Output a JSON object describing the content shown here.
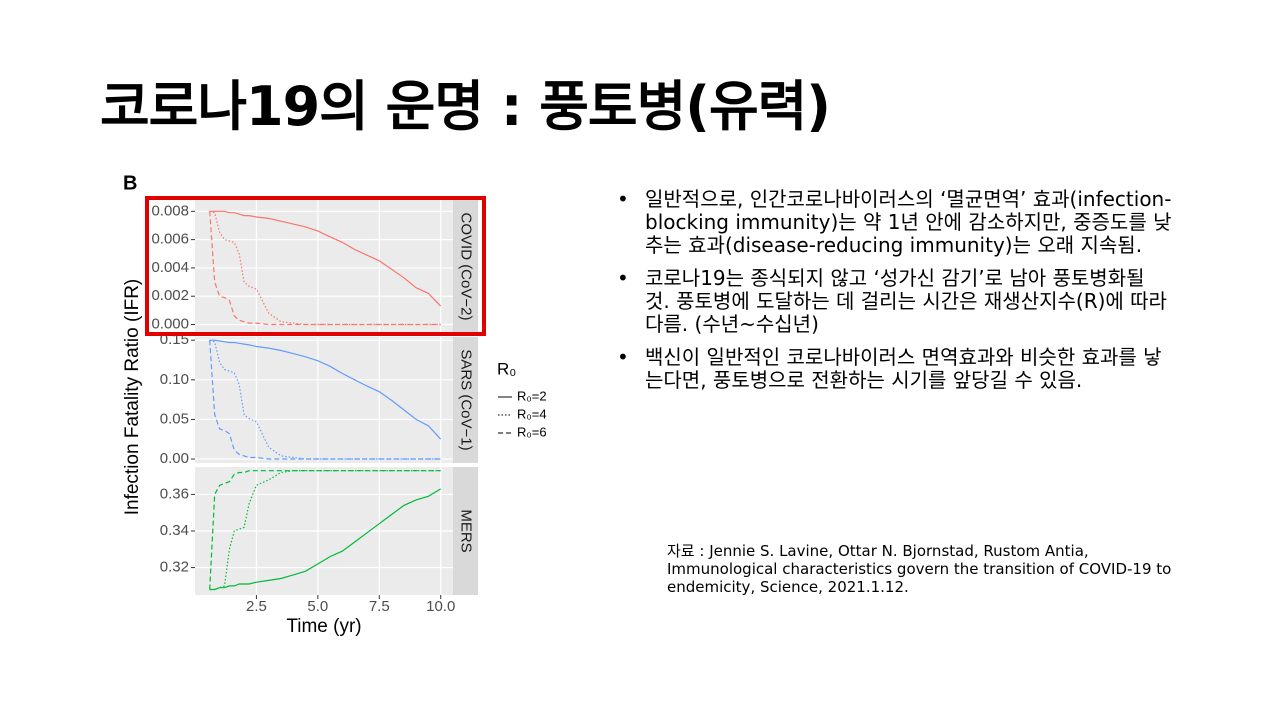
{
  "title": "코로나19의 운명 : 풍토병(유력)",
  "chart_data": {
    "type": "line",
    "panel_label": "B",
    "x_label": "Time (yr)",
    "y_label": "Infection Fatality Ratio (IFR)",
    "legend_title": "R₀",
    "legend": [
      "R₀=2",
      "R₀=4",
      "R₀=6"
    ],
    "dashes": [
      "solid",
      "dotted",
      "dashed"
    ],
    "grid": true,
    "xlim": [
      0,
      10.5
    ],
    "xticks": [
      2.5,
      {
        "value": 5,
        "label": "5.0"
      },
      7.5,
      {
        "value": 10,
        "label": "10.0"
      }
    ],
    "x": [
      0.6,
      0.8,
      1.0,
      1.2,
      1.4,
      1.6,
      1.8,
      2.0,
      2.2,
      2.5,
      3,
      3.5,
      4,
      4.5,
      5,
      5.5,
      6,
      6.5,
      7,
      7.5,
      8,
      8.5,
      9,
      9.5,
      10
    ],
    "facets": [
      {
        "label": "COVID (CoV−2)",
        "color": "#f8766d",
        "ylim": [
          -0.0006,
          0.0088
        ],
        "yticks": [
          {
            "value": 0,
            "label": "0.000"
          },
          0.002,
          0.004,
          0.006,
          0.008
        ],
        "series": [
          {
            "values": [
              0.008,
              0.008,
              0.008,
              0.008,
              0.0079,
              0.0079,
              0.0078,
              0.0077,
              0.0077,
              0.0076,
              0.0075,
              0.0073,
              0.0071,
              0.0069,
              0.0066,
              0.0062,
              0.0058,
              0.0053,
              0.0049,
              0.0045,
              0.0039,
              0.0033,
              0.0026,
              0.0022,
              0.0013
            ]
          },
          {
            "values": [
              0.008,
              0.0079,
              0.0065,
              0.006,
              0.0059,
              0.0058,
              0.005,
              0.003,
              0.0027,
              0.0025,
              0.0008,
              0.0002,
              0.0001,
              0,
              0,
              0,
              0,
              0,
              0,
              0,
              0,
              0,
              0,
              0,
              0
            ]
          },
          {
            "values": [
              0.008,
              0.003,
              0.002,
              0.0019,
              0.0017,
              0.0006,
              0.0003,
              0.0002,
              0.0001,
              0.0001,
              0,
              0,
              0,
              0,
              0,
              0,
              0,
              0,
              0,
              0,
              0,
              0,
              0,
              0,
              0
            ]
          }
        ]
      },
      {
        "label": "SARS (CoV−1)",
        "color": "#619cff",
        "ylim": [
          -0.005,
          0.154
        ],
        "yticks": [
          {
            "value": 0,
            "label": "0.00"
          },
          0.05,
          {
            "value": 0.1,
            "label": "0.10"
          },
          0.15
        ],
        "series": [
          {
            "values": [
              0.15,
              0.15,
              0.149,
              0.148,
              0.147,
              0.147,
              0.146,
              0.145,
              0.144,
              0.142,
              0.14,
              0.137,
              0.133,
              0.129,
              0.124,
              0.117,
              0.108,
              0.1,
              0.092,
              0.085,
              0.074,
              0.062,
              0.05,
              0.042,
              0.025
            ]
          },
          {
            "values": [
              0.15,
              0.148,
              0.122,
              0.113,
              0.111,
              0.109,
              0.094,
              0.056,
              0.051,
              0.047,
              0.015,
              0.004,
              0.002,
              0,
              0,
              0,
              0,
              0,
              0,
              0,
              0,
              0,
              0,
              0,
              0
            ]
          },
          {
            "values": [
              0.15,
              0.056,
              0.038,
              0.036,
              0.032,
              0.011,
              0.006,
              0.004,
              0.002,
              0.002,
              0,
              0,
              0,
              0,
              0,
              0,
              0,
              0,
              0,
              0,
              0,
              0,
              0,
              0,
              0
            ]
          }
        ]
      },
      {
        "label": "MERS",
        "color": "#00ba38",
        "ylim": [
          0.305,
          0.375
        ],
        "yticks": [
          0.32,
          0.34,
          0.36
        ],
        "series": [
          {
            "values": [
              0.308,
              0.308,
              0.309,
              0.309,
              0.31,
              0.31,
              0.311,
              0.311,
              0.311,
              0.312,
              0.313,
              0.314,
              0.316,
              0.318,
              0.322,
              0.326,
              0.329,
              0.334,
              0.339,
              0.344,
              0.349,
              0.354,
              0.357,
              0.359,
              0.363
            ]
          },
          {
            "values": [
              0.308,
              0.308,
              0.309,
              0.31,
              0.33,
              0.34,
              0.341,
              0.342,
              0.355,
              0.365,
              0.368,
              0.372,
              0.373,
              0.373,
              0.373,
              0.373,
              0.373,
              0.373,
              0.373,
              0.373,
              0.373,
              0.373,
              0.373,
              0.373,
              0.373
            ]
          },
          {
            "values": [
              0.308,
              0.36,
              0.365,
              0.366,
              0.367,
              0.371,
              0.372,
              0.372,
              0.373,
              0.373,
              0.373,
              0.373,
              0.373,
              0.373,
              0.373,
              0.373,
              0.373,
              0.373,
              0.373,
              0.373,
              0.373,
              0.373,
              0.373,
              0.373,
              0.373
            ]
          }
        ]
      }
    ]
  },
  "bullets": [
    "일반적으로, 인간코로나바이러스의 ‘멸균면역’ 효과(infection-blocking immunity)는 약 1년 안에 감소하지만, 중증도를 낮추는 효과(disease-reducing immunity)는 오래 지속됨.",
    "코로나19는 종식되지 않고 ‘성가신 감기’로 남아 풍토병화될 것. 풍토병에 도달하는 데 걸리는 시간은 재생산지수(R)에 따라 다름. (수년~수십년)",
    "백신이 일반적인 코로나바이러스 면역효과와 비슷한 효과를 낳는다면, 풍토병으로 전환하는 시기를 앞당길 수 있음."
  ],
  "source": "자료 : Jennie S. Lavine, Ottar N. Bjornstad, Rustom Antia, Immunological characteristics govern the transition of COVID-19 to endemicity, Science, 2021.1.12."
}
